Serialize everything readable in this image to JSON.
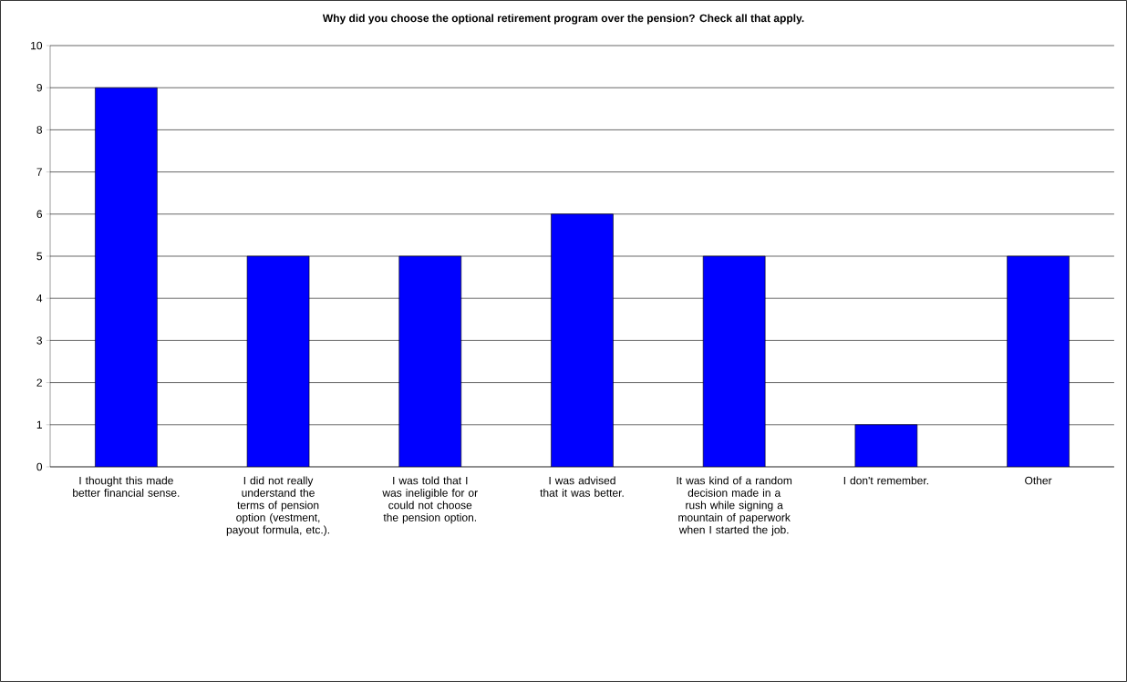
{
  "chart_data": {
    "type": "bar",
    "title": "Why did you choose the optional retirement program over the pension?  Check all that apply.",
    "categories": [
      "I thought this made better financial sense.",
      "I did not really understand the terms of pension option (vestment, payout formula, etc.).",
      "I was told that I was ineligible for or could not choose the pension option.",
      "I was advised that it was better.",
      "It was kind of a random decision made in a rush while signing a mountain of paperwork when I started the job.",
      "I don't remember.",
      "Other"
    ],
    "values": [
      9,
      5,
      5,
      6,
      5,
      1,
      5
    ],
    "color": "#0000ff",
    "ylim": [
      0,
      10
    ],
    "yticks": [
      0,
      1,
      2,
      3,
      4,
      5,
      6,
      7,
      8,
      9,
      10
    ],
    "grid": "y"
  }
}
